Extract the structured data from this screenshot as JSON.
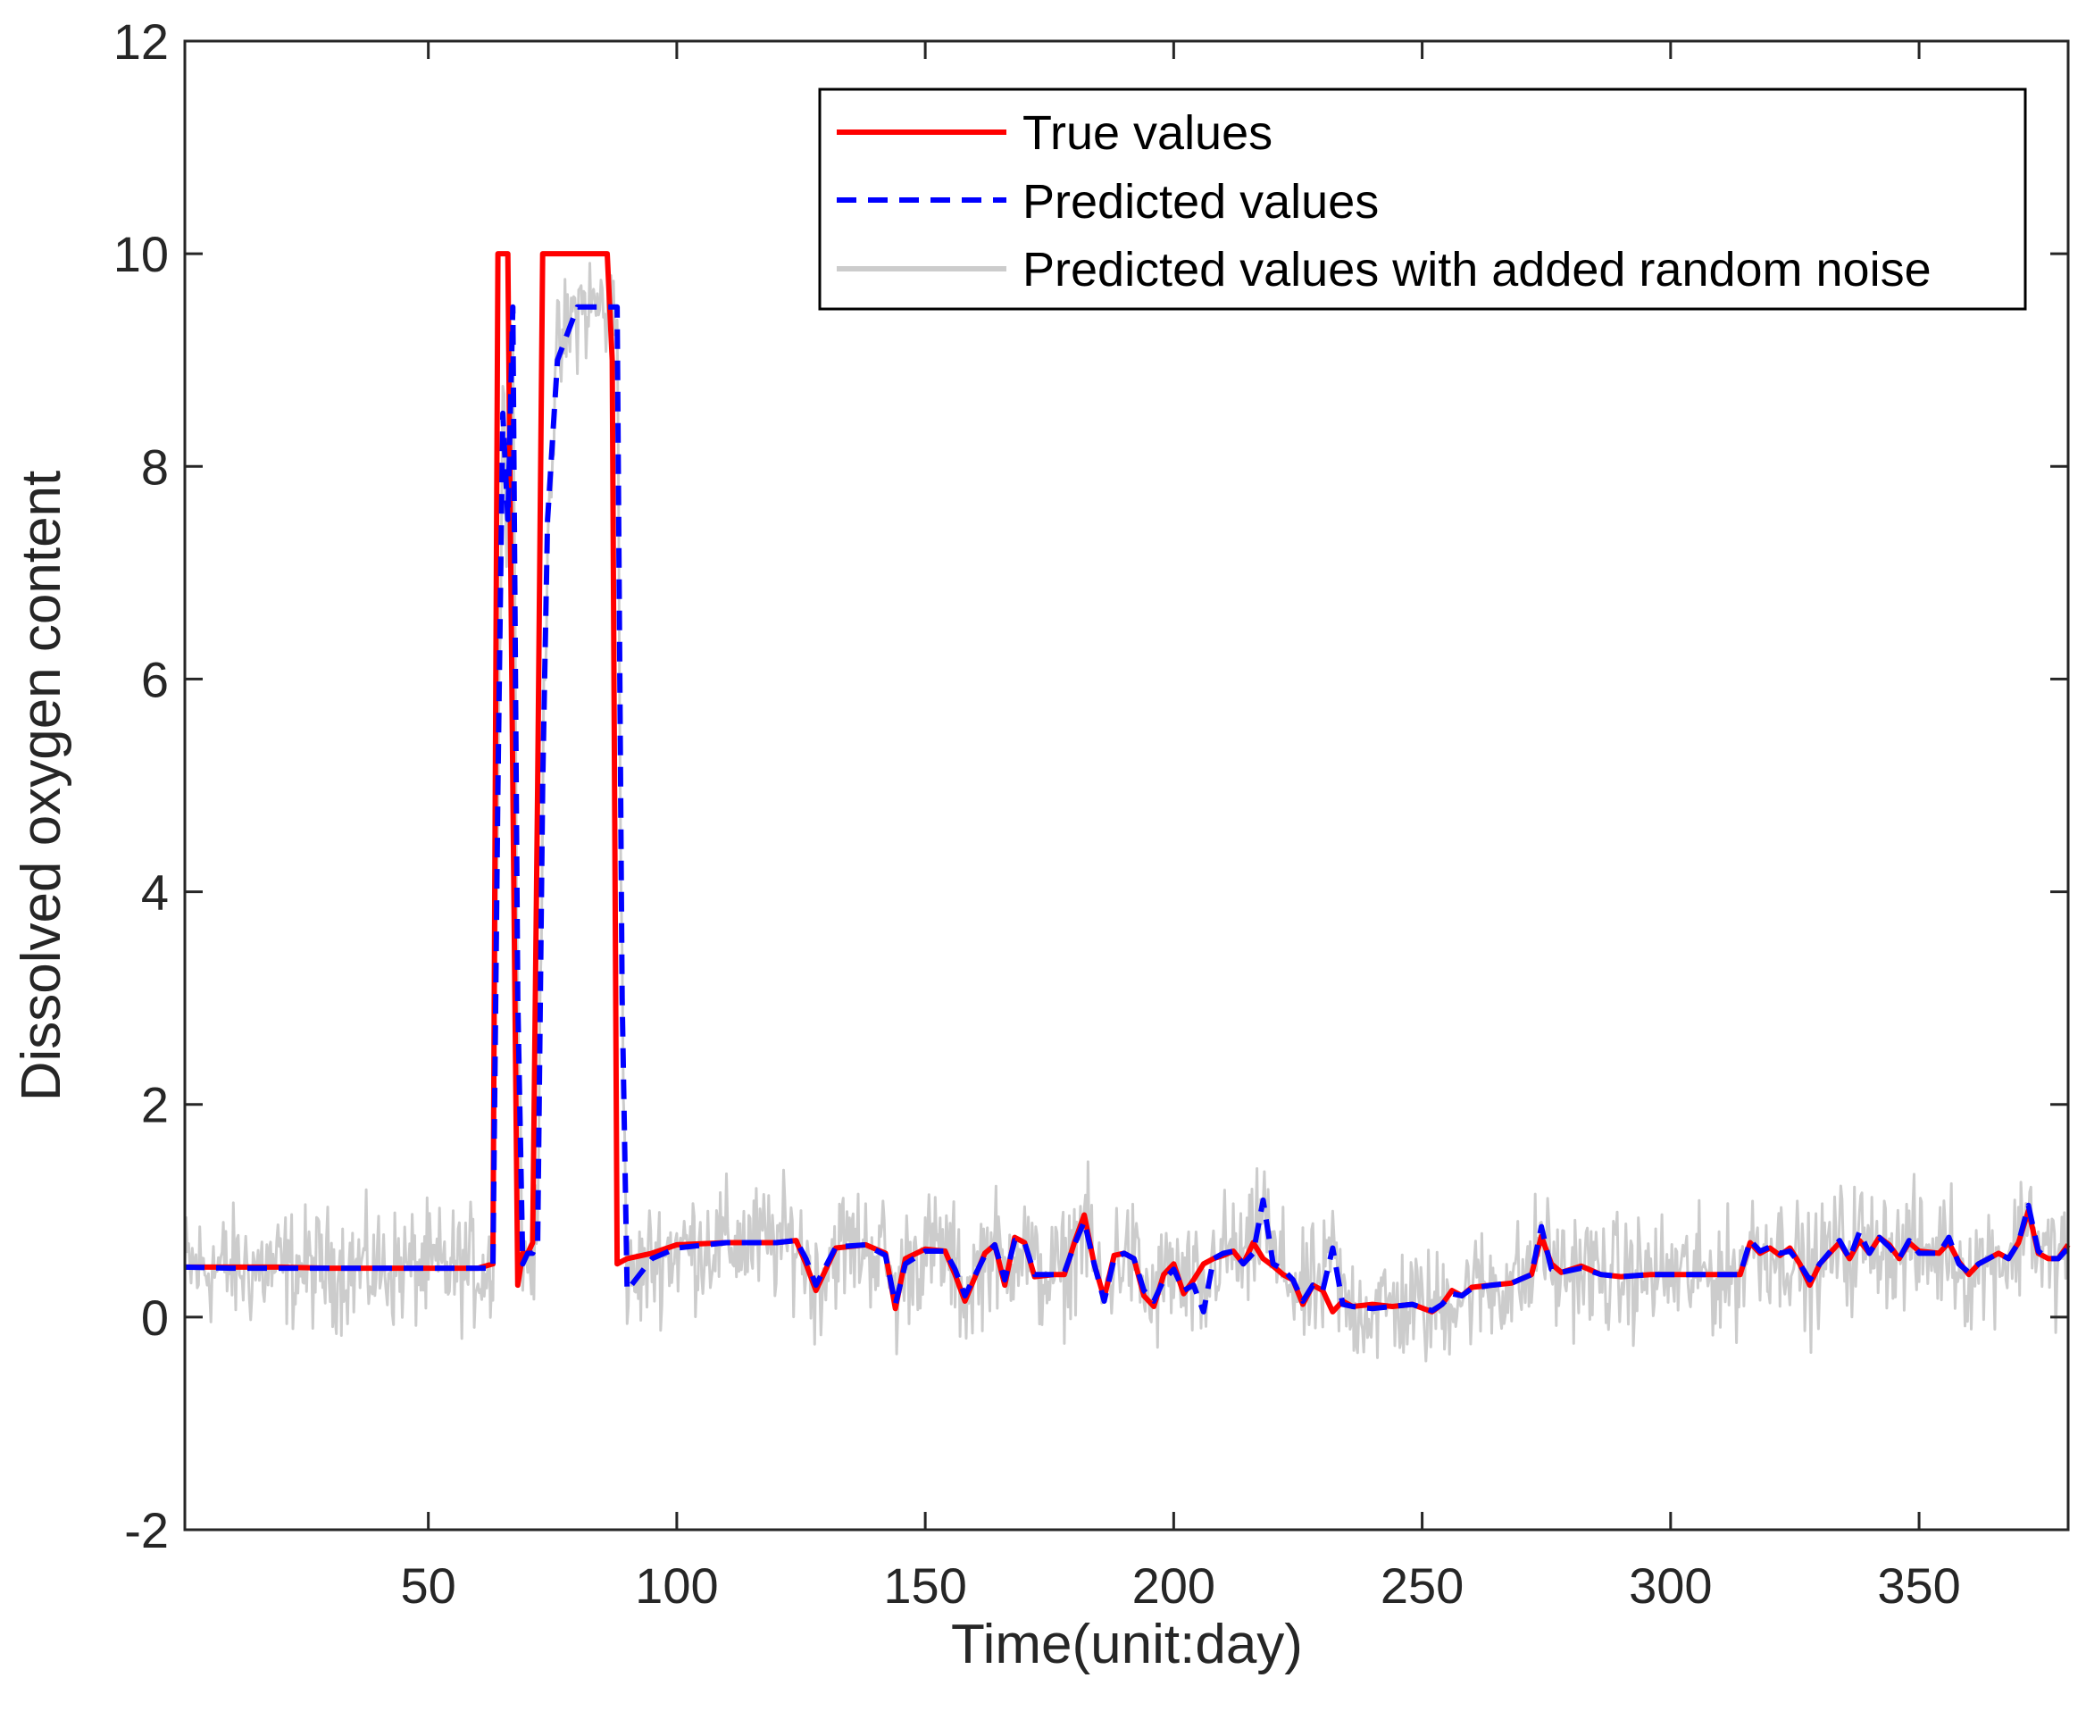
{
  "chart_data": {
    "type": "line",
    "title": "",
    "xlabel": "Time(unit:day)",
    "ylabel": "Dissolved oxygen content",
    "xlim": [
      1,
      380
    ],
    "ylim": [
      -2,
      12
    ],
    "xticks": [
      50,
      100,
      150,
      200,
      250,
      300,
      350
    ],
    "yticks": [
      -2,
      0,
      2,
      4,
      6,
      8,
      10,
      12
    ],
    "xtick_labels": [
      "50",
      "100",
      "150",
      "200",
      "250",
      "300",
      "350"
    ],
    "ytick_labels": [
      "-2",
      "0",
      "2",
      "4",
      "6",
      "8",
      "10",
      "12"
    ],
    "grid": false,
    "legend_position": "top-right",
    "series": [
      {
        "name": "True values",
        "color": "#ff0000",
        "style": "solid",
        "x": [
          1,
          10,
          20,
          30,
          40,
          50,
          60,
          63,
          64,
          65,
          66,
          67,
          68,
          69,
          70,
          71,
          72,
          73,
          74,
          80,
          86,
          87,
          88,
          90,
          95,
          100,
          110,
          120,
          124,
          126,
          128,
          132,
          138,
          142,
          144,
          146,
          150,
          154,
          156,
          158,
          162,
          164,
          166,
          168,
          170,
          172,
          176,
          178,
          180,
          182,
          184,
          186,
          188,
          190,
          192,
          194,
          196,
          198,
          200,
          202,
          204,
          206,
          208,
          210,
          212,
          214,
          216,
          218,
          220,
          222,
          224,
          226,
          228,
          230,
          232,
          234,
          236,
          240,
          244,
          248,
          252,
          254,
          256,
          258,
          260,
          264,
          268,
          272,
          274,
          276,
          278,
          282,
          286,
          290,
          296,
          302,
          308,
          314,
          316,
          318,
          320,
          322,
          324,
          326,
          328,
          330,
          334,
          336,
          338,
          340,
          342,
          344,
          346,
          348,
          350,
          354,
          356,
          358,
          360,
          362,
          366,
          368,
          370,
          372,
          374,
          376,
          378,
          380
        ],
        "values": [
          0.47,
          0.47,
          0.47,
          0.46,
          0.46,
          0.46,
          0.46,
          0.5,
          10,
          10,
          10,
          5,
          0.3,
          0.6,
          0.6,
          0.7,
          5,
          10,
          10,
          10,
          10,
          9,
          0.5,
          0.55,
          0.6,
          0.68,
          0.7,
          0.7,
          0.72,
          0.5,
          0.25,
          0.65,
          0.68,
          0.6,
          0.08,
          0.55,
          0.64,
          0.62,
          0.4,
          0.15,
          0.6,
          0.68,
          0.3,
          0.75,
          0.7,
          0.38,
          0.4,
          0.4,
          0.7,
          0.96,
          0.5,
          0.18,
          0.58,
          0.6,
          0.55,
          0.2,
          0.1,
          0.4,
          0.5,
          0.22,
          0.35,
          0.5,
          0.55,
          0.58,
          0.62,
          0.5,
          0.7,
          0.55,
          0.48,
          0.4,
          0.35,
          0.12,
          0.3,
          0.25,
          0.05,
          0.15,
          0.1,
          0.12,
          0.1,
          0.12,
          0.05,
          0.12,
          0.25,
          0.2,
          0.28,
          0.3,
          0.32,
          0.4,
          0.76,
          0.5,
          0.42,
          0.48,
          0.4,
          0.38,
          0.4,
          0.4,
          0.4,
          0.4,
          0.7,
          0.6,
          0.65,
          0.58,
          0.65,
          0.5,
          0.3,
          0.5,
          0.7,
          0.55,
          0.72,
          0.6,
          0.75,
          0.68,
          0.55,
          0.7,
          0.62,
          0.6,
          0.7,
          0.52,
          0.4,
          0.5,
          0.6,
          0.55,
          0.7,
          1.0,
          0.6,
          0.55,
          0.55,
          0.68
        ]
      },
      {
        "name": "Predicted values",
        "color": "#0000ff",
        "style": "dashed",
        "x": [
          1,
          10,
          20,
          30,
          40,
          50,
          60,
          63,
          64,
          65,
          66,
          67,
          68,
          69,
          70,
          71,
          72,
          73,
          74,
          76,
          80,
          86,
          87,
          88,
          89,
          90,
          95,
          100,
          110,
          120,
          124,
          126,
          128,
          132,
          138,
          142,
          144,
          146,
          150,
          154,
          156,
          158,
          162,
          164,
          166,
          168,
          170,
          172,
          176,
          178,
          180,
          182,
          184,
          186,
          188,
          190,
          192,
          194,
          196,
          198,
          200,
          202,
          204,
          206,
          208,
          210,
          212,
          214,
          216,
          218,
          220,
          222,
          224,
          226,
          228,
          230,
          232,
          234,
          236,
          240,
          244,
          248,
          252,
          254,
          256,
          258,
          260,
          264,
          268,
          272,
          274,
          276,
          278,
          282,
          286,
          290,
          296,
          302,
          308,
          314,
          316,
          318,
          320,
          322,
          324,
          326,
          328,
          330,
          334,
          336,
          338,
          340,
          342,
          344,
          346,
          348,
          350,
          354,
          356,
          358,
          360,
          362,
          366,
          368,
          370,
          372,
          374,
          376,
          378,
          380
        ],
        "values": [
          0.47,
          0.46,
          0.46,
          0.46,
          0.46,
          0.46,
          0.46,
          0.46,
          5,
          8.5,
          7.5,
          9.5,
          3,
          0.5,
          0.6,
          0.6,
          0.7,
          5,
          7.5,
          9,
          9.5,
          9.5,
          9.5,
          9.5,
          3,
          0.25,
          0.55,
          0.65,
          0.7,
          0.7,
          0.72,
          0.55,
          0.3,
          0.66,
          0.68,
          0.58,
          0.12,
          0.5,
          0.62,
          0.62,
          0.45,
          0.2,
          0.58,
          0.68,
          0.35,
          0.72,
          0.7,
          0.4,
          0.4,
          0.42,
          0.68,
          0.9,
          0.5,
          0.15,
          0.55,
          0.6,
          0.55,
          0.25,
          0.15,
          0.35,
          0.45,
          0.25,
          0.3,
          0.05,
          0.55,
          0.6,
          0.62,
          0.5,
          0.6,
          1.1,
          0.5,
          0.45,
          0.35,
          0.15,
          0.3,
          0.25,
          0.65,
          0.12,
          0.1,
          0.08,
          0.1,
          0.12,
          0.06,
          0.12,
          0.22,
          0.2,
          0.27,
          0.3,
          0.32,
          0.4,
          0.85,
          0.45,
          0.42,
          0.46,
          0.4,
          0.38,
          0.4,
          0.4,
          0.4,
          0.4,
          0.72,
          0.62,
          0.66,
          0.6,
          0.62,
          0.5,
          0.35,
          0.5,
          0.72,
          0.55,
          0.8,
          0.6,
          0.75,
          0.66,
          0.55,
          0.72,
          0.6,
          0.6,
          0.75,
          0.5,
          0.42,
          0.5,
          0.6,
          0.55,
          0.7,
          1.05,
          0.62,
          0.55,
          0.55,
          0.65
        ]
      },
      {
        "name": "Predicted values with added random noise",
        "color": "#cccccc",
        "style": "solid",
        "noise_amplitude": 0.5
      }
    ]
  }
}
